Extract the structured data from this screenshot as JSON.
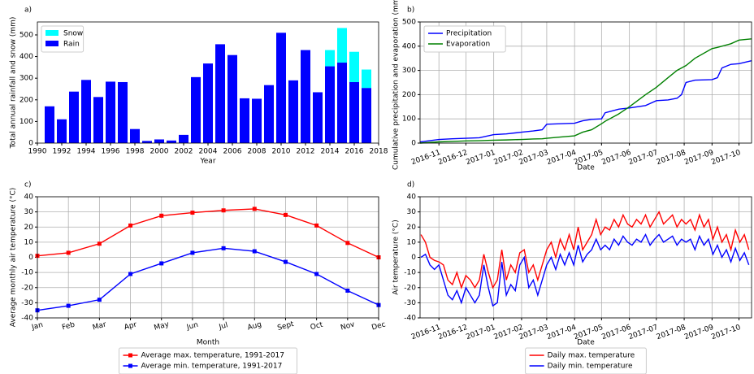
{
  "chart_data": [
    {
      "type": "bar",
      "panel_label": "a)",
      "xlabel": "Year",
      "ylabel": "Total annual rainfall and snow (mm)",
      "stacked": true,
      "legend": "upper left",
      "grid": false,
      "x": [
        1991,
        1992,
        1993,
        1994,
        1995,
        1996,
        1997,
        1998,
        1999,
        2000,
        2001,
        2002,
        2003,
        2004,
        2005,
        2006,
        2007,
        2008,
        2009,
        2010,
        2011,
        2012,
        2013,
        2014,
        2015,
        2016,
        2017
      ],
      "series": [
        {
          "name": "Rain",
          "color": "#0000ff",
          "values": [
            170,
            110,
            238,
            292,
            213,
            284,
            282,
            65,
            10,
            17,
            12,
            38,
            305,
            368,
            457,
            407,
            207,
            205,
            268,
            510,
            290,
            430,
            235,
            355,
            372,
            282,
            255
          ]
        },
        {
          "name": "Snow",
          "color": "#00ffff",
          "values": [
            0,
            0,
            0,
            0,
            0,
            0,
            0,
            0,
            0,
            0,
            0,
            0,
            0,
            0,
            0,
            0,
            0,
            0,
            0,
            0,
            0,
            0,
            0,
            75,
            160,
            140,
            85
          ]
        }
      ],
      "xlim": [
        1990,
        2018
      ],
      "xticks": [
        1990,
        1992,
        1994,
        1996,
        1998,
        2000,
        2002,
        2004,
        2006,
        2008,
        2010,
        2012,
        2014,
        2016,
        2018
      ],
      "ylim": [
        0,
        560
      ],
      "yticks": [
        0,
        100,
        200,
        300,
        400,
        500
      ]
    },
    {
      "type": "line",
      "panel_label": "b)",
      "xlabel": "Date",
      "ylabel": "Cumulative precipitation and evaporation (mm)",
      "legend": "upper left",
      "grid": true,
      "xtick_rotation": -20,
      "x": [
        -21,
        0,
        15,
        30,
        45,
        61,
        75,
        92,
        105,
        115,
        120,
        135,
        151,
        160,
        170,
        181,
        185,
        200,
        212,
        230,
        242,
        255,
        265,
        270,
        275,
        285,
        304,
        310,
        315,
        325,
        334,
        348
      ],
      "series": [
        {
          "name": "Precipitation",
          "color": "#0000ff",
          "values": [
            5,
            15,
            18,
            20,
            22,
            35,
            38,
            45,
            50,
            55,
            78,
            80,
            82,
            92,
            98,
            100,
            125,
            140,
            145,
            155,
            175,
            178,
            185,
            200,
            250,
            260,
            262,
            270,
            310,
            325,
            328,
            340
          ]
        },
        {
          "name": "Evaporation",
          "color": "#008000",
          "values": [
            0,
            5,
            7,
            9,
            10,
            12,
            13,
            15,
            17,
            18,
            20,
            25,
            30,
            45,
            55,
            80,
            90,
            120,
            150,
            200,
            230,
            270,
            300,
            310,
            320,
            350,
            390,
            395,
            400,
            410,
            425,
            430
          ]
        }
      ],
      "xlim": [
        -21,
        348
      ],
      "xticks": [
        {
          "value": 0,
          "label": "2016-11"
        },
        {
          "value": 30,
          "label": "2016-12"
        },
        {
          "value": 61,
          "label": "2017-01"
        },
        {
          "value": 92,
          "label": "2017-02"
        },
        {
          "value": 120,
          "label": "2017-03"
        },
        {
          "value": 151,
          "label": "2017-04"
        },
        {
          "value": 181,
          "label": "2017-05"
        },
        {
          "value": 212,
          "label": "2017-06"
        },
        {
          "value": 242,
          "label": "2017-07"
        },
        {
          "value": 273,
          "label": "2017-08"
        },
        {
          "value": 304,
          "label": "2017-09"
        },
        {
          "value": 334,
          "label": "2017-10"
        }
      ],
      "ylim": [
        0,
        500
      ],
      "yticks": [
        0,
        100,
        200,
        300,
        400,
        500
      ]
    },
    {
      "type": "line",
      "panel_label": "c)",
      "xlabel": "Month",
      "ylabel": "Average monthly air temperature (°C)",
      "legend": "below",
      "grid": true,
      "marker": "square",
      "xtick_rotation": -15,
      "categories": [
        "Jan",
        "Feb",
        "Mar",
        "Apr",
        "May",
        "Jun",
        "Jul",
        "Aug",
        "Sept",
        "Oct",
        "Nov",
        "Dec"
      ],
      "series": [
        {
          "name": "Average max. temperature, 1991-2017",
          "color": "#ff0000",
          "values": [
            1,
            3,
            9,
            21,
            27.5,
            29.5,
            31,
            32,
            28,
            21,
            9.5,
            0
          ]
        },
        {
          "name": "Average min. temperature, 1991-2017",
          "color": "#0000ff",
          "values": [
            -35,
            -32,
            -28,
            -11,
            -4,
            3,
            6,
            4,
            -3,
            -11,
            -22,
            -31.5
          ]
        }
      ],
      "ylim": [
        -40,
        40
      ],
      "yticks": [
        -40,
        -30,
        -20,
        -10,
        0,
        10,
        20,
        30,
        40
      ]
    },
    {
      "type": "line",
      "panel_label": "d)",
      "xlabel": "Date",
      "ylabel": "Air temperature (°C)",
      "legend": "below",
      "grid": true,
      "xtick_rotation": -20,
      "x": [
        -20,
        -15,
        -10,
        -5,
        0,
        5,
        10,
        15,
        20,
        25,
        30,
        35,
        40,
        45,
        50,
        55,
        60,
        65,
        70,
        75,
        80,
        85,
        90,
        95,
        100,
        105,
        110,
        115,
        120,
        125,
        130,
        135,
        140,
        145,
        150,
        155,
        160,
        165,
        170,
        175,
        180,
        185,
        190,
        195,
        200,
        205,
        210,
        215,
        220,
        225,
        230,
        235,
        240,
        245,
        250,
        255,
        260,
        265,
        270,
        275,
        280,
        285,
        290,
        295,
        300,
        305,
        310,
        315,
        320,
        325,
        330,
        335,
        340,
        345
      ],
      "series": [
        {
          "name": "Daily max. temperature",
          "color": "#ff0000",
          "values": [
            15,
            10,
            0,
            -2,
            -3,
            -5,
            -15,
            -18,
            -10,
            -20,
            -12,
            -15,
            -20,
            -15,
            2,
            -10,
            -20,
            -15,
            5,
            -15,
            -5,
            -10,
            3,
            5,
            -10,
            -5,
            -15,
            -5,
            5,
            10,
            0,
            12,
            5,
            15,
            5,
            20,
            5,
            10,
            15,
            25,
            15,
            20,
            18,
            25,
            20,
            28,
            22,
            20,
            25,
            22,
            28,
            20,
            25,
            30,
            22,
            25,
            28,
            20,
            25,
            22,
            25,
            18,
            28,
            20,
            25,
            12,
            20,
            10,
            15,
            5,
            18,
            10,
            15,
            5
          ]
        },
        {
          "name": "Daily min. temperature",
          "color": "#0000ff",
          "values": [
            0,
            2,
            -5,
            -8,
            -5,
            -15,
            -25,
            -28,
            -22,
            -30,
            -20,
            -25,
            -30,
            -25,
            -5,
            -20,
            -32,
            -30,
            -3,
            -25,
            -18,
            -22,
            -5,
            0,
            -20,
            -15,
            -25,
            -15,
            -5,
            0,
            -8,
            2,
            -5,
            3,
            -5,
            8,
            -3,
            2,
            5,
            12,
            5,
            8,
            5,
            12,
            8,
            14,
            10,
            8,
            12,
            10,
            15,
            8,
            12,
            15,
            10,
            12,
            14,
            8,
            12,
            10,
            12,
            5,
            14,
            8,
            12,
            2,
            8,
            0,
            5,
            -3,
            6,
            -2,
            3,
            -5
          ]
        }
      ],
      "xlim": [
        -21,
        348
      ],
      "xticks": [
        {
          "value": 0,
          "label": "2016-11"
        },
        {
          "value": 30,
          "label": "2016-12"
        },
        {
          "value": 61,
          "label": "2017-01"
        },
        {
          "value": 92,
          "label": "2017-02"
        },
        {
          "value": 120,
          "label": "2017-03"
        },
        {
          "value": 151,
          "label": "2017-04"
        },
        {
          "value": 181,
          "label": "2017-05"
        },
        {
          "value": 212,
          "label": "2017-06"
        },
        {
          "value": 242,
          "label": "2017-07"
        },
        {
          "value": 273,
          "label": "2017-08"
        },
        {
          "value": 304,
          "label": "2017-09"
        },
        {
          "value": 334,
          "label": "2017-10"
        }
      ],
      "ylim": [
        -40,
        40
      ],
      "yticks": [
        -40,
        -30,
        -20,
        -10,
        0,
        10,
        20,
        30,
        40
      ]
    }
  ]
}
